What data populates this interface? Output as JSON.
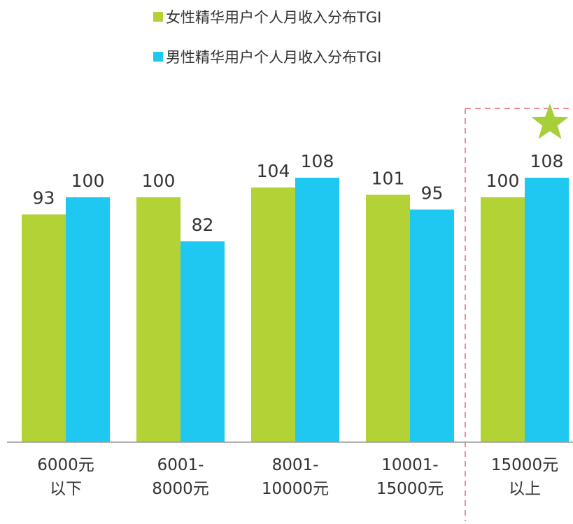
{
  "chart_data": {
    "type": "bar",
    "categories": [
      [
        "6000元",
        "以下"
      ],
      [
        "6001-",
        "8000元"
      ],
      [
        "8001-",
        "10000元"
      ],
      [
        "10001-",
        "15000元"
      ],
      [
        "15000元",
        "以上"
      ]
    ],
    "series": [
      {
        "name": "女性精华用户个人月收入分布TGI",
        "color": "#b2d235",
        "values": [
          93,
          100,
          104,
          101,
          100
        ]
      },
      {
        "name": "男性精华用户个人月收入分布TGI",
        "color": "#1fc8f0",
        "values": [
          100,
          82,
          108,
          95,
          108
        ]
      }
    ],
    "ylim": [
      0,
      125
    ],
    "grid": false,
    "legend_position": "top-center",
    "highlight": {
      "category_index": 4,
      "marker": "star-icon",
      "marker_color": "#a8cf3a",
      "border_color": "#f08a96"
    },
    "axis_color": "#999999",
    "label_color": "#333333"
  }
}
